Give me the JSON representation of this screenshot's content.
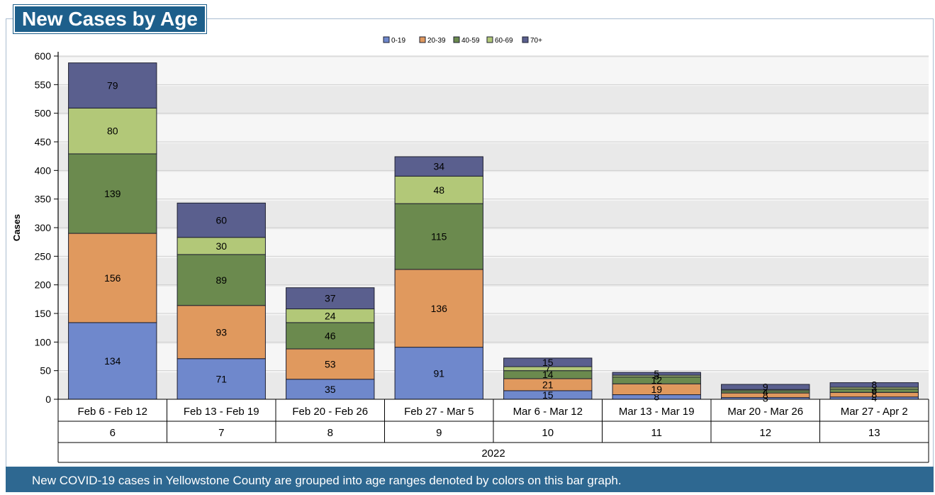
{
  "title": "New Cases by Age",
  "footer": "New COVID-19 cases in Yellowstone County are grouped into age ranges denoted by colors on this bar graph.",
  "chart_data": {
    "type": "bar",
    "stacked": true,
    "ylabel": "Cases",
    "ylim": [
      0,
      600
    ],
    "yticks": [
      0,
      50,
      100,
      150,
      200,
      250,
      300,
      350,
      400,
      450,
      500,
      550,
      600
    ],
    "categories": [
      "Feb 6 - Feb 12",
      "Feb 13 - Feb 19",
      "Feb 20 - Feb 26",
      "Feb 27 - Mar 5",
      "Mar 6 - Mar 12",
      "Mar 13 - Mar 19",
      "Mar 20 - Mar 26",
      "Mar 27 - Apr 2"
    ],
    "week_numbers": [
      "6",
      "7",
      "8",
      "9",
      "10",
      "11",
      "12",
      "13"
    ],
    "year": "2022",
    "legend_position": "top",
    "series": [
      {
        "name": "0-19",
        "color": "#6f88cc",
        "values": [
          134,
          71,
          35,
          91,
          15,
          8,
          3,
          4
        ]
      },
      {
        "name": "20-39",
        "color": "#e0995e",
        "values": [
          156,
          93,
          53,
          136,
          21,
          19,
          8,
          8
        ]
      },
      {
        "name": "40-59",
        "color": "#6b8a4e",
        "values": [
          139,
          89,
          46,
          115,
          14,
          12,
          4,
          6
        ]
      },
      {
        "name": "60-69",
        "color": "#b2c878",
        "values": [
          80,
          30,
          24,
          48,
          7,
          3,
          2,
          3
        ]
      },
      {
        "name": "70+",
        "color": "#5a5f8e",
        "values": [
          79,
          60,
          37,
          34,
          15,
          5,
          9,
          8
        ]
      }
    ]
  }
}
